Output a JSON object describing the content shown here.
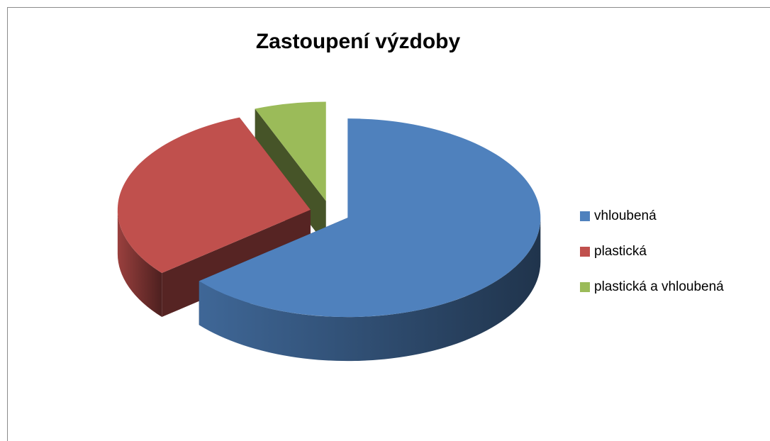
{
  "chart_data": {
    "type": "pie",
    "title": "Zastoupení výzdoby",
    "categories": [
      "vhloubená",
      "plastická",
      "plastická a vhloubená"
    ],
    "values": [
      64,
      30,
      6
    ],
    "colors": [
      "#4f81bd",
      "#c0504d",
      "#9bbb59"
    ],
    "legend": "right"
  }
}
